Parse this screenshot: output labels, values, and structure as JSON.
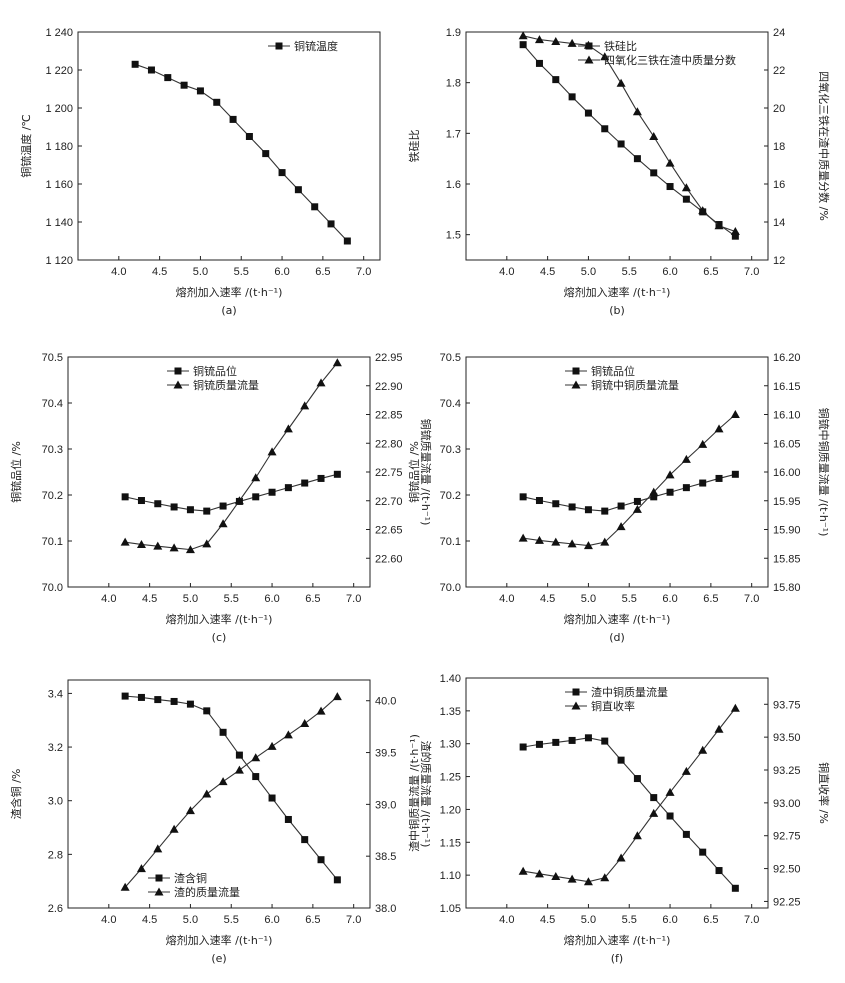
{
  "figure": {
    "xlabel": "熔剂加入速率 /(t·h⁻¹)"
  },
  "chart_data": [
    {
      "id": "a",
      "type": "line",
      "caption": "(a)",
      "x": [
        4.2,
        4.4,
        4.6,
        4.8,
        5.0,
        5.2,
        5.4,
        5.6,
        5.8,
        6.0,
        6.2,
        6.4,
        6.6,
        6.8
      ],
      "xlim": [
        3.5,
        7.2
      ],
      "xticks": [
        "4.0",
        "4.5",
        "5.0",
        "5.5",
        "6.0",
        "6.5",
        "7.0"
      ],
      "xlabel": "熔剂加入速率 /(t·h⁻¹)",
      "ylim": [
        1120,
        1240
      ],
      "yticks": [
        "1 120",
        "1 140",
        "1 160",
        "1 180",
        "1 200",
        "1 220",
        "1 240"
      ],
      "ylabel": "铜锍温度 /℃",
      "legend": "top-right",
      "series": [
        {
          "name": "铜锍温度",
          "marker": "square",
          "axis": "left",
          "values": [
            1223,
            1220,
            1216,
            1212,
            1209,
            1203,
            1194,
            1185,
            1176,
            1166,
            1157,
            1148,
            1139,
            1130
          ]
        }
      ]
    },
    {
      "id": "b",
      "type": "line",
      "caption": "(b)",
      "x": [
        4.2,
        4.4,
        4.6,
        4.8,
        5.0,
        5.2,
        5.4,
        5.6,
        5.8,
        6.0,
        6.2,
        6.4,
        6.6,
        6.8
      ],
      "xlim": [
        3.5,
        7.2
      ],
      "xticks": [
        "4.0",
        "4.5",
        "5.0",
        "5.5",
        "6.0",
        "6.5",
        "7.0"
      ],
      "xlabel": "熔剂加入速率 /(t·h⁻¹)",
      "ylim": [
        1.45,
        1.9
      ],
      "yticks": [
        "1.5",
        "1.6",
        "1.7",
        "1.8",
        "1.9"
      ],
      "ylabel": "铁硅比",
      "y2lim": [
        12,
        24
      ],
      "y2ticks": [
        "12",
        "14",
        "16",
        "18",
        "20",
        "22",
        "24"
      ],
      "y2label": "四氧化三铁在渣中质量分数 /%",
      "legend": "top-right",
      "series": [
        {
          "name": "铁硅比",
          "marker": "square",
          "axis": "left",
          "values": [
            1.875,
            1.838,
            1.806,
            1.772,
            1.74,
            1.709,
            1.679,
            1.65,
            1.622,
            1.595,
            1.57,
            1.545,
            1.52,
            1.497
          ]
        },
        {
          "name": "四氧化三铁在渣中质量分数",
          "marker": "triangle",
          "axis": "right",
          "values": [
            23.8,
            23.6,
            23.5,
            23.4,
            23.3,
            22.7,
            21.3,
            19.8,
            18.5,
            17.1,
            15.8,
            14.6,
            13.8,
            13.5
          ]
        }
      ]
    },
    {
      "id": "c",
      "type": "line",
      "caption": "(c)",
      "x": [
        4.2,
        4.4,
        4.6,
        4.8,
        5.0,
        5.2,
        5.4,
        5.6,
        5.8,
        6.0,
        6.2,
        6.4,
        6.6,
        6.8
      ],
      "xlim": [
        3.5,
        7.2
      ],
      "xticks": [
        "4.0",
        "4.5",
        "5.0",
        "5.5",
        "6.0",
        "6.5",
        "7.0"
      ],
      "xlabel": "熔剂加入速率 /(t·h⁻¹)",
      "ylim": [
        70.0,
        70.5
      ],
      "yticks": [
        "70.0",
        "70.1",
        "70.2",
        "70.3",
        "70.4",
        "70.5"
      ],
      "ylabel": "铜锍品位 /%",
      "y2lim": [
        22.55,
        22.95
      ],
      "y2ticks": [
        "22.60",
        "22.65",
        "22.70",
        "22.75",
        "22.80",
        "22.85",
        "22.90",
        "22.95"
      ],
      "y2label": "铜锍质量流量 /(t·h⁻¹)",
      "legend": "top-center",
      "series": [
        {
          "name": "铜锍品位",
          "marker": "square",
          "axis": "left",
          "values": [
            70.196,
            70.188,
            70.181,
            70.174,
            70.168,
            70.165,
            70.176,
            70.186,
            70.196,
            70.206,
            70.216,
            70.226,
            70.236,
            70.245
          ]
        },
        {
          "name": "铜锍质量流量",
          "marker": "triangle",
          "axis": "right",
          "values": [
            22.628,
            22.624,
            22.621,
            22.618,
            22.615,
            22.625,
            22.66,
            22.7,
            22.74,
            22.785,
            22.825,
            22.865,
            22.905,
            22.94
          ]
        }
      ]
    },
    {
      "id": "d",
      "type": "line",
      "caption": "(d)",
      "x": [
        4.2,
        4.4,
        4.6,
        4.8,
        5.0,
        5.2,
        5.4,
        5.6,
        5.8,
        6.0,
        6.2,
        6.4,
        6.6,
        6.8
      ],
      "xlim": [
        3.5,
        7.2
      ],
      "xticks": [
        "4.0",
        "4.5",
        "5.0",
        "5.5",
        "6.0",
        "6.5",
        "7.0"
      ],
      "xlabel": "熔剂加入速率 /(t·h⁻¹)",
      "ylim": [
        70.0,
        70.5
      ],
      "yticks": [
        "70.0",
        "70.1",
        "70.2",
        "70.3",
        "70.4",
        "70.5"
      ],
      "ylabel": "铜锍品位 /%",
      "y2lim": [
        15.8,
        16.2
      ],
      "y2ticks": [
        "15.80",
        "15.85",
        "15.90",
        "15.95",
        "16.00",
        "16.05",
        "16.10",
        "16.15",
        "16.20"
      ],
      "y2label": "铜锍中铜质量流量 /(t·h⁻¹)",
      "legend": "top-center",
      "series": [
        {
          "name": "铜锍品位",
          "marker": "square",
          "axis": "left",
          "values": [
            70.196,
            70.188,
            70.181,
            70.174,
            70.168,
            70.165,
            70.176,
            70.186,
            70.196,
            70.206,
            70.216,
            70.226,
            70.236,
            70.245
          ]
        },
        {
          "name": "铜锍中铜质量流量",
          "marker": "triangle",
          "axis": "right",
          "values": [
            15.885,
            15.881,
            15.878,
            15.875,
            15.872,
            15.878,
            15.905,
            15.935,
            15.965,
            15.995,
            16.022,
            16.048,
            16.075,
            16.1
          ]
        }
      ]
    },
    {
      "id": "e",
      "type": "line",
      "caption": "(e)",
      "x": [
        4.2,
        4.4,
        4.6,
        4.8,
        5.0,
        5.2,
        5.4,
        5.6,
        5.8,
        6.0,
        6.2,
        6.4,
        6.6,
        6.8
      ],
      "xlim": [
        3.5,
        7.2
      ],
      "xticks": [
        "4.0",
        "4.5",
        "5.0",
        "5.5",
        "6.0",
        "6.5",
        "7.0"
      ],
      "xlabel": "熔剂加入速率 /(t·h⁻¹)",
      "ylim": [
        2.6,
        3.45
      ],
      "yticks": [
        "2.6",
        "2.8",
        "3.0",
        "3.2",
        "3.4"
      ],
      "ylabel": "渣含铜 /%",
      "y2lim": [
        38.0,
        40.2
      ],
      "y2ticks": [
        "38.0",
        "38.5",
        "39.0",
        "39.5",
        "40.0"
      ],
      "y2label": "渣的质量流量 /(t·h⁻¹)",
      "legend": "bottom-left",
      "series": [
        {
          "name": "渣含铜",
          "marker": "square",
          "axis": "left",
          "values": [
            3.39,
            3.385,
            3.377,
            3.37,
            3.36,
            3.335,
            3.255,
            3.17,
            3.09,
            3.01,
            2.93,
            2.855,
            2.78,
            2.705
          ]
        },
        {
          "name": "渣的质量流量",
          "marker": "triangle",
          "axis": "right",
          "values": [
            38.2,
            38.38,
            38.57,
            38.76,
            38.94,
            39.1,
            39.22,
            39.33,
            39.45,
            39.56,
            39.67,
            39.78,
            39.9,
            40.04
          ]
        }
      ]
    },
    {
      "id": "f",
      "type": "line",
      "caption": "(f)",
      "x": [
        4.2,
        4.4,
        4.6,
        4.8,
        5.0,
        5.2,
        5.4,
        5.6,
        5.8,
        6.0,
        6.2,
        6.4,
        6.6,
        6.8
      ],
      "xlim": [
        3.5,
        7.2
      ],
      "xticks": [
        "4.0",
        "4.5",
        "5.0",
        "5.5",
        "6.0",
        "6.5",
        "7.0"
      ],
      "xlabel": "熔剂加入速率 /(t·h⁻¹)",
      "ylim": [
        1.05,
        1.4
      ],
      "yticks": [
        "1.05",
        "1.10",
        "1.15",
        "1.20",
        "1.25",
        "1.30",
        "1.35",
        "1.40"
      ],
      "ylabel": "渣中铜质量流量 /(t·h⁻¹)",
      "y2lim": [
        92.2,
        93.95
      ],
      "y2ticks": [
        "92.25",
        "92.50",
        "92.75",
        "93.00",
        "93.25",
        "93.50",
        "93.75"
      ],
      "y2label": "铜直收率 /%",
      "legend": "top-center",
      "series": [
        {
          "name": "渣中铜质量流量",
          "marker": "square",
          "axis": "left",
          "values": [
            1.295,
            1.299,
            1.302,
            1.305,
            1.309,
            1.304,
            1.275,
            1.247,
            1.218,
            1.19,
            1.162,
            1.135,
            1.107,
            1.08
          ]
        },
        {
          "name": "铜直收率",
          "marker": "triangle",
          "axis": "right",
          "values": [
            92.48,
            92.46,
            92.44,
            92.42,
            92.4,
            92.43,
            92.58,
            92.75,
            92.92,
            93.08,
            93.24,
            93.4,
            93.56,
            93.72
          ]
        }
      ]
    }
  ]
}
